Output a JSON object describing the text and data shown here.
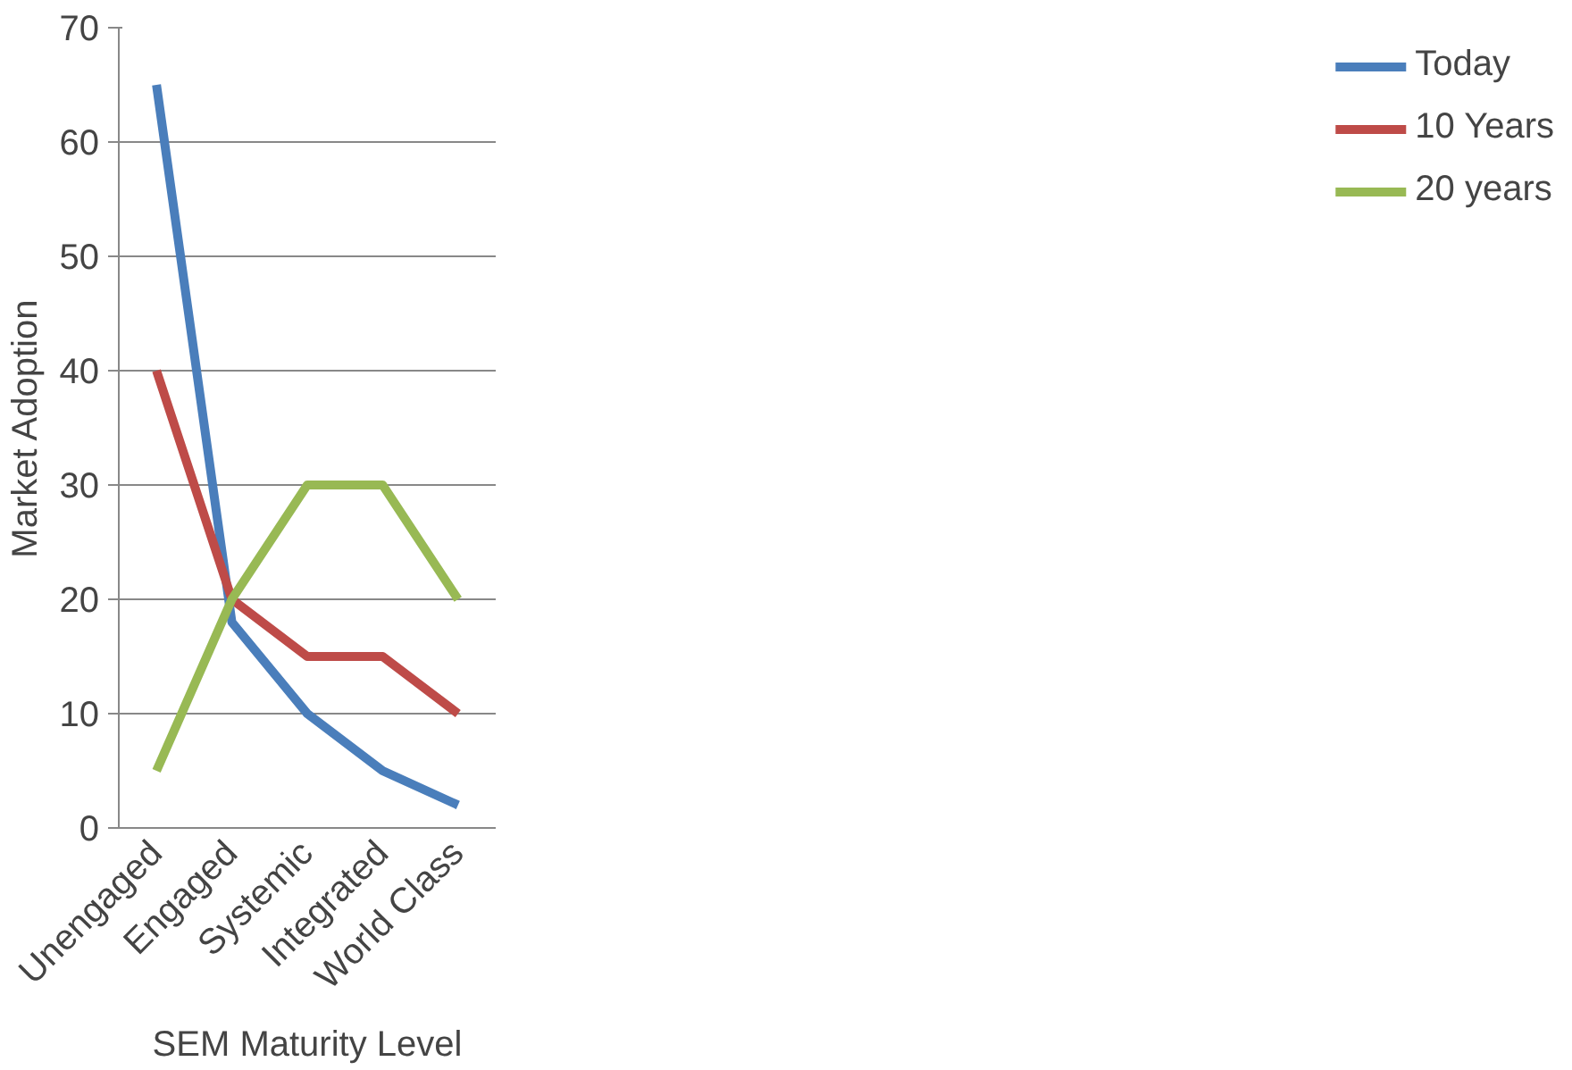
{
  "chart_data": {
    "type": "line",
    "xlabel": "SEM Maturity Level",
    "ylabel": "Market Adoption",
    "categories": [
      "Unengaged",
      "Engaged",
      "Systemic",
      "Integrated",
      "World Class"
    ],
    "series": [
      {
        "name": "Today",
        "color": "#4a7ebb",
        "values": [
          65,
          18,
          10,
          5,
          2
        ]
      },
      {
        "name": "10 Years",
        "color": "#be4b48",
        "values": [
          40,
          20,
          15,
          15,
          10
        ]
      },
      {
        "name": "20 years",
        "color": "#98b954",
        "values": [
          5,
          20,
          30,
          30,
          20
        ]
      }
    ],
    "ylim": [
      0,
      70
    ],
    "yticks": [
      0,
      10,
      20,
      30,
      40,
      50,
      60,
      70
    ],
    "grid": "y",
    "legend": "right",
    "marker": "none",
    "line_style": "solid"
  }
}
